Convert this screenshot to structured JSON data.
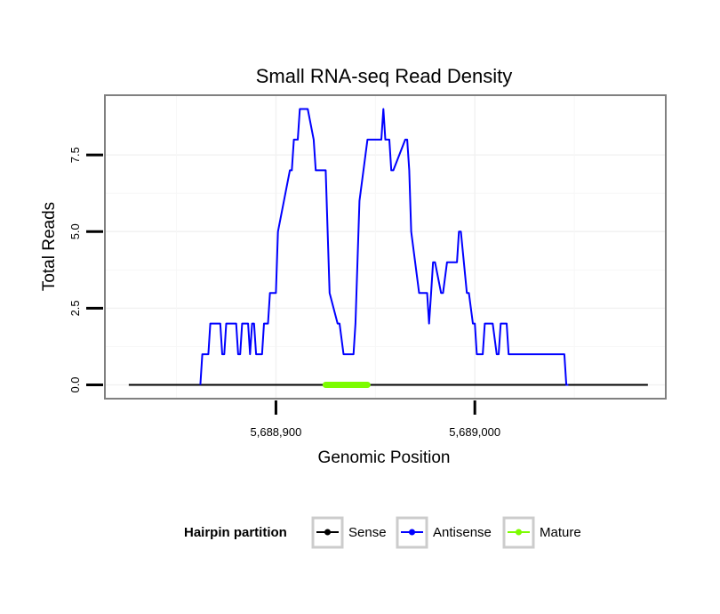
{
  "chart_data": {
    "type": "line",
    "title": "Small RNA-seq Read Density",
    "xlabel": "Genomic Position",
    "ylabel": "Total Reads",
    "xlim": [
      5688814,
      5689096
    ],
    "ylim": [
      -0.45,
      9.45
    ],
    "x_ticks": [
      5688900,
      5689000
    ],
    "x_tick_labels": [
      "5,688,900",
      "5,689,000"
    ],
    "y_ticks": [
      0,
      2.5,
      5,
      7.5
    ],
    "y_tick_labels": [
      "0.0",
      "2.5",
      "5.0",
      "7.5"
    ],
    "grid": true,
    "legend": {
      "title": "Hairpin partition",
      "position": "bottom",
      "entries": [
        "Sense",
        "Antisense",
        "Mature"
      ]
    },
    "colors": {
      "Sense": "#000000",
      "Antisense": "#0000ff",
      "Mature": "#7cfc00"
    },
    "series": [
      {
        "name": "Sense",
        "x": [
          5688826,
          5689087
        ],
        "y": [
          0,
          0
        ]
      },
      {
        "name": "Antisense",
        "x": [
          5688862,
          5688863,
          5688866,
          5688867,
          5688872,
          5688873,
          5688874,
          5688875,
          5688880,
          5688881,
          5688882,
          5688883,
          5688886,
          5688887,
          5688888,
          5688889,
          5688890,
          5688893,
          5688894,
          5688896,
          5688897,
          5688900,
          5688901,
          5688907,
          5688908,
          5688909,
          5688911,
          5688912,
          5688913,
          5688915,
          5688916,
          5688919,
          5688920,
          5688925,
          5688926,
          5688927,
          5688931,
          5688932,
          5688934,
          5688936,
          5688937,
          5688939,
          5688940,
          5688942,
          5688946,
          5688947,
          5688953,
          5688954,
          5688955,
          5688956,
          5688957,
          5688958,
          5688959,
          5688965,
          5688966,
          5688967,
          5688968,
          5688972,
          5688973,
          5688974,
          5688976,
          5688977,
          5688978,
          5688979,
          5688980,
          5688983,
          5688984,
          5688986,
          5688991,
          5688992,
          5688993,
          5688996,
          5688997,
          5688999,
          5689000,
          5689001,
          5689002,
          5689003,
          5689004,
          5689005,
          5689006,
          5689009,
          5689011,
          5689012,
          5689013,
          5689016,
          5689017,
          5689020,
          5689021,
          5689025,
          5689026,
          5689031,
          5689032,
          5689045,
          5689046,
          5689047
        ],
        "y": [
          0,
          1,
          1,
          2,
          2,
          1,
          1,
          2,
          2,
          1,
          1,
          2,
          2,
          1,
          2,
          2,
          1,
          1,
          2,
          2,
          3,
          3,
          5,
          7,
          7,
          8,
          8,
          9,
          9,
          9,
          9,
          8,
          7,
          7,
          5,
          3,
          2,
          2,
          1,
          1,
          1,
          1,
          2,
          6,
          8,
          8,
          8,
          9,
          8,
          8,
          8,
          7,
          7,
          8,
          8,
          7,
          5,
          3,
          3,
          3,
          3,
          2,
          3,
          4,
          4,
          3,
          3,
          4,
          4,
          5,
          5,
          3,
          3,
          2,
          2,
          1,
          1,
          1,
          1,
          2,
          2,
          2,
          1,
          1,
          2,
          2,
          1,
          1,
          1,
          1,
          1,
          1,
          1,
          1,
          0,
          0
        ]
      },
      {
        "name": "Mature",
        "x": [
          5688925,
          5688946
        ],
        "y": [
          0,
          0
        ]
      }
    ]
  }
}
